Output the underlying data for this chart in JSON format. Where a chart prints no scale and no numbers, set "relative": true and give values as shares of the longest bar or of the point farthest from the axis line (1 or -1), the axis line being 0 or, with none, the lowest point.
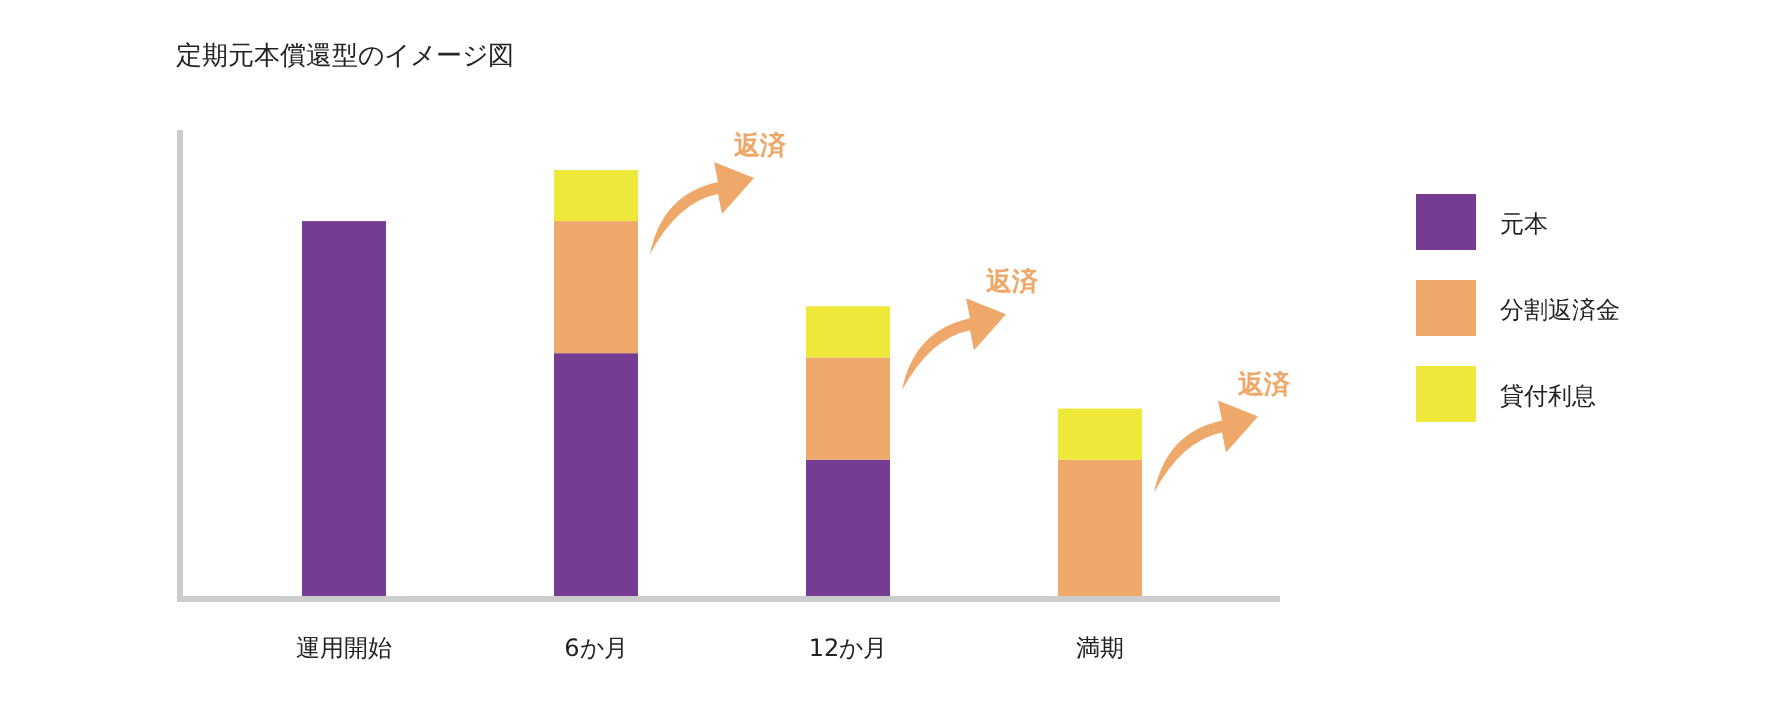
{
  "chart_data": {
    "type": "bar",
    "title": "定期元本償還型のイメージ図",
    "stacked": true,
    "relative": true,
    "legend": "right",
    "categories": [
      "運用開始",
      "6か月",
      "12か月",
      "満期"
    ],
    "series": [
      {
        "name": "元本",
        "color": "#763c94",
        "values": [
          0.88,
          0.57,
          0.32,
          0
        ]
      },
      {
        "name": "分割返済金",
        "color": "#eea96a",
        "values": [
          0,
          0.31,
          0.24,
          0.32
        ]
      },
      {
        "name": "貸付利息",
        "color": "#eee83a",
        "values": [
          0,
          0.12,
          0.12,
          0.12
        ]
      }
    ],
    "annotations": [
      "返済",
      "返済",
      "返済"
    ]
  }
}
